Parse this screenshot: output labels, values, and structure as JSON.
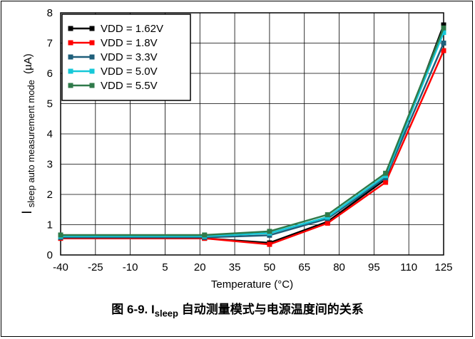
{
  "chart_data": {
    "type": "line",
    "xlabel": "Temperature (°C)",
    "ylabel_main": "I",
    "ylabel_sub": "sleep auto measurement mode",
    "ylabel_unit": "(µA)",
    "xlim": [
      -40,
      125
    ],
    "ylim": [
      0,
      8
    ],
    "xticks": [
      "-40",
      "-25",
      "-10",
      "5",
      "20",
      "35",
      "50",
      "65",
      "80",
      "95",
      "110",
      "125"
    ],
    "yticks": [
      "0",
      "1",
      "2",
      "3",
      "4",
      "5",
      "6",
      "7",
      "8"
    ],
    "grid": true,
    "legend_position": "top-left",
    "series": [
      {
        "name": "VDD = 1.62V",
        "color": "#000000",
        "x": [
          -40,
          22,
          50,
          75,
          100,
          125
        ],
        "y": [
          0.55,
          0.55,
          0.4,
          1.1,
          2.5,
          7.6
        ]
      },
      {
        "name": "VDD = 1.8V",
        "color": "#ff0000",
        "x": [
          -40,
          22,
          50,
          75,
          100,
          125
        ],
        "y": [
          0.55,
          0.55,
          0.35,
          1.05,
          2.4,
          6.75
        ]
      },
      {
        "name": "VDD = 3.3V",
        "color": "#1f5f7a",
        "x": [
          -40,
          22,
          50,
          75,
          100,
          125
        ],
        "y": [
          0.58,
          0.58,
          0.65,
          1.2,
          2.55,
          7.0
        ]
      },
      {
        "name": "VDD = 5.0V",
        "color": "#16c8d8",
        "x": [
          -40,
          22,
          50,
          75,
          100,
          125
        ],
        "y": [
          0.62,
          0.62,
          0.72,
          1.25,
          2.62,
          7.35
        ]
      },
      {
        "name": "VDD = 5.5V",
        "color": "#2f7a4a",
        "x": [
          -40,
          22,
          50,
          75,
          100,
          125
        ],
        "y": [
          0.66,
          0.66,
          0.78,
          1.33,
          2.7,
          7.5
        ]
      }
    ]
  },
  "caption": {
    "prefix": "图 6-9. I",
    "sub": "sleep",
    "suffix": " 自动测量模式与电源温度间的关系"
  }
}
